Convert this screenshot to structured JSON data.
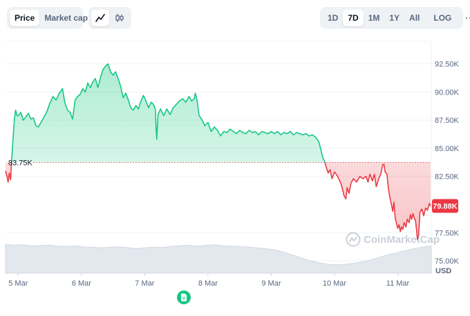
{
  "toolbar": {
    "metric_tabs": [
      "Price",
      "Market cap"
    ],
    "active_metric": "Price",
    "chart_type_icons": [
      "line-chart-icon",
      "candlestick-icon"
    ],
    "ranges": [
      "1D",
      "7D",
      "1M",
      "1Y",
      "All"
    ],
    "active_range": "7D",
    "log_label": "LOG",
    "more_label": "···"
  },
  "colors": {
    "up": "#16c784",
    "down": "#ea3943",
    "reference_line": "#ea3943",
    "current_badge": "#ea3943"
  },
  "watermark": "CoinMarketCap",
  "reference_label": "83.75K",
  "current_price_label": "79.88K",
  "y_axis_unit": "USD",
  "chart_data": {
    "type": "area",
    "series": [
      {
        "values": [
          [
            4.8,
            83.0
          ],
          [
            4.82,
            82.6
          ],
          [
            4.84,
            82.0
          ],
          [
            4.86,
            82.8
          ],
          [
            4.88,
            82.2
          ],
          [
            4.9,
            84.3
          ],
          [
            4.92,
            86.0
          ],
          [
            4.94,
            87.6
          ],
          [
            4.96,
            88.4
          ],
          [
            4.98,
            87.9
          ],
          [
            5.0,
            87.9
          ],
          [
            5.04,
            88.2
          ],
          [
            5.08,
            87.5
          ],
          [
            5.12,
            87.8
          ],
          [
            5.16,
            88.1
          ],
          [
            5.2,
            87.6
          ],
          [
            5.24,
            87.7
          ],
          [
            5.28,
            87.0
          ],
          [
            5.32,
            86.9
          ],
          [
            5.36,
            87.3
          ],
          [
            5.4,
            87.7
          ],
          [
            5.45,
            88.2
          ],
          [
            5.5,
            89.0
          ],
          [
            5.55,
            89.6
          ],
          [
            5.6,
            89.3
          ],
          [
            5.65,
            89.9
          ],
          [
            5.7,
            90.3
          ],
          [
            5.74,
            89.0
          ],
          [
            5.78,
            88.4
          ],
          [
            5.82,
            88.2
          ],
          [
            5.86,
            87.6
          ],
          [
            5.9,
            89.3
          ],
          [
            5.94,
            89.6
          ],
          [
            5.98,
            89.8
          ],
          [
            6.02,
            90.3
          ],
          [
            6.06,
            90.0
          ],
          [
            6.1,
            90.8
          ],
          [
            6.14,
            90.4
          ],
          [
            6.18,
            90.9
          ],
          [
            6.22,
            91.2
          ],
          [
            6.26,
            90.4
          ],
          [
            6.3,
            91.3
          ],
          [
            6.34,
            92.0
          ],
          [
            6.38,
            92.3
          ],
          [
            6.42,
            92.5
          ],
          [
            6.46,
            91.8
          ],
          [
            6.5,
            91.5
          ],
          [
            6.54,
            91.8
          ],
          [
            6.58,
            91.2
          ],
          [
            6.62,
            90.5
          ],
          [
            6.66,
            89.5
          ],
          [
            6.7,
            89.9
          ],
          [
            6.74,
            89.3
          ],
          [
            6.78,
            88.6
          ],
          [
            6.82,
            88.4
          ],
          [
            6.86,
            88.8
          ],
          [
            6.9,
            88.5
          ],
          [
            6.94,
            89.2
          ],
          [
            6.98,
            89.7
          ],
          [
            7.02,
            89.2
          ],
          [
            7.06,
            88.6
          ],
          [
            7.1,
            89.1
          ],
          [
            7.14,
            88.9
          ],
          [
            7.17,
            88.4
          ],
          [
            7.18,
            86.8
          ],
          [
            7.19,
            85.8
          ],
          [
            7.21,
            88.0
          ],
          [
            7.25,
            88.5
          ],
          [
            7.3,
            87.9
          ],
          [
            7.35,
            88.5
          ],
          [
            7.4,
            88.0
          ],
          [
            7.45,
            88.6
          ],
          [
            7.5,
            88.9
          ],
          [
            7.55,
            89.2
          ],
          [
            7.6,
            89.4
          ],
          [
            7.65,
            89.1
          ],
          [
            7.7,
            89.6
          ],
          [
            7.74,
            89.2
          ],
          [
            7.78,
            89.4
          ],
          [
            7.8,
            89.9
          ],
          [
            7.83,
            89.2
          ],
          [
            7.86,
            87.9
          ],
          [
            7.9,
            87.6
          ],
          [
            7.95,
            87.0
          ],
          [
            8.0,
            87.3
          ],
          [
            8.05,
            86.5
          ],
          [
            8.1,
            86.9
          ],
          [
            8.15,
            86.6
          ],
          [
            8.2,
            86.1
          ],
          [
            8.25,
            86.5
          ],
          [
            8.3,
            86.4
          ],
          [
            8.35,
            86.7
          ],
          [
            8.4,
            86.5
          ],
          [
            8.45,
            86.3
          ],
          [
            8.5,
            86.6
          ],
          [
            8.55,
            86.4
          ],
          [
            8.6,
            86.3
          ],
          [
            8.65,
            86.6
          ],
          [
            8.7,
            86.4
          ],
          [
            8.75,
            86.5
          ],
          [
            8.8,
            86.2
          ],
          [
            8.85,
            86.5
          ],
          [
            8.9,
            86.4
          ],
          [
            8.95,
            86.3
          ],
          [
            9.0,
            86.5
          ],
          [
            9.05,
            86.3
          ],
          [
            9.1,
            86.5
          ],
          [
            9.15,
            86.2
          ],
          [
            9.2,
            86.4
          ],
          [
            9.25,
            86.3
          ],
          [
            9.3,
            86.5
          ],
          [
            9.35,
            86.2
          ],
          [
            9.4,
            86.4
          ],
          [
            9.45,
            86.3
          ],
          [
            9.5,
            86.2
          ],
          [
            9.55,
            86.3
          ],
          [
            9.6,
            86.1
          ],
          [
            9.65,
            86.2
          ],
          [
            9.7,
            86.0
          ],
          [
            9.75,
            85.6
          ],
          [
            9.78,
            85.0
          ],
          [
            9.8,
            84.5
          ],
          [
            9.82,
            84.1
          ],
          [
            9.84,
            83.9
          ],
          [
            9.87,
            83.3
          ],
          [
            9.9,
            82.8
          ],
          [
            9.93,
            83.1
          ],
          [
            9.96,
            82.3
          ],
          [
            10.0,
            82.9
          ],
          [
            10.05,
            82.5
          ],
          [
            10.1,
            81.9
          ],
          [
            10.13,
            81.3
          ],
          [
            10.15,
            80.8
          ],
          [
            10.18,
            80.5
          ],
          [
            10.2,
            81.5
          ],
          [
            10.23,
            81.0
          ],
          [
            10.26,
            81.9
          ],
          [
            10.3,
            82.3
          ],
          [
            10.35,
            82.0
          ],
          [
            10.4,
            82.5
          ],
          [
            10.45,
            82.3
          ],
          [
            10.5,
            82.5
          ],
          [
            10.53,
            82.0
          ],
          [
            10.56,
            82.7
          ],
          [
            10.6,
            82.1
          ],
          [
            10.63,
            82.7
          ],
          [
            10.66,
            81.6
          ],
          [
            10.7,
            82.3
          ],
          [
            10.73,
            82.7
          ],
          [
            10.76,
            83.5
          ],
          [
            10.78,
            83.6
          ],
          [
            10.8,
            82.9
          ],
          [
            10.83,
            82.7
          ],
          [
            10.85,
            81.5
          ],
          [
            10.87,
            80.8
          ],
          [
            10.9,
            80.0
          ],
          [
            10.92,
            79.4
          ],
          [
            10.94,
            80.2
          ],
          [
            10.96,
            78.8
          ],
          [
            10.98,
            78.3
          ],
          [
            11.0,
            77.9
          ],
          [
            11.02,
            78.2
          ],
          [
            11.04,
            77.6
          ],
          [
            11.06,
            78.0
          ],
          [
            11.08,
            77.8
          ],
          [
            11.1,
            78.4
          ],
          [
            11.13,
            78.0
          ],
          [
            11.15,
            78.7
          ],
          [
            11.18,
            78.4
          ],
          [
            11.2,
            79.1
          ],
          [
            11.22,
            78.7
          ],
          [
            11.24,
            79.2
          ],
          [
            11.26,
            78.8
          ],
          [
            11.28,
            78.6
          ],
          [
            11.3,
            77.6
          ],
          [
            11.31,
            76.9
          ],
          [
            11.33,
            77.3
          ],
          [
            11.35,
            79.3
          ],
          [
            11.38,
            79.6
          ],
          [
            11.41,
            79.0
          ],
          [
            11.44,
            79.7
          ],
          [
            11.47,
            79.5
          ],
          [
            11.5,
            80.1
          ],
          [
            11.52,
            79.88
          ]
        ]
      }
    ],
    "reference_value": 83.75,
    "current_value": 79.88,
    "xlim": [
      4.8,
      11.53
    ],
    "ylim": [
      73.9,
      94.5
    ],
    "x_ticks": [
      {
        "x": 5,
        "label": "5 Mar"
      },
      {
        "x": 6,
        "label": "6 Mar"
      },
      {
        "x": 7,
        "label": "7 Mar"
      },
      {
        "x": 8,
        "label": "8 Mar"
      },
      {
        "x": 9,
        "label": "9 Mar"
      },
      {
        "x": 10,
        "label": "10 Mar"
      },
      {
        "x": 11,
        "label": "11 Mar"
      }
    ],
    "y_ticks": [
      {
        "y": 92.5,
        "label": "92.50K"
      },
      {
        "y": 90.0,
        "label": "90.00K"
      },
      {
        "y": 87.5,
        "label": "87.50K"
      },
      {
        "y": 85.0,
        "label": "85.00K"
      },
      {
        "y": 82.5,
        "label": "82.50K"
      },
      {
        "y": 77.5,
        "label": "77.50K"
      },
      {
        "y": 75.0,
        "label": "75.00K"
      }
    ],
    "volume_series": [
      0.82,
      0.8,
      0.81,
      0.78,
      0.79,
      0.8,
      0.77,
      0.76,
      0.78,
      0.75,
      0.74,
      0.72,
      0.74,
      0.75,
      0.73,
      0.7,
      0.72,
      0.74,
      0.73,
      0.76,
      0.78,
      0.8,
      0.77,
      0.79,
      0.81,
      0.78,
      0.77,
      0.76,
      0.74,
      0.72,
      0.7,
      0.66,
      0.6,
      0.52,
      0.44,
      0.36,
      0.3,
      0.26,
      0.24,
      0.25,
      0.28,
      0.32,
      0.38,
      0.45,
      0.52,
      0.58,
      0.64,
      0.7,
      0.74,
      0.78
    ],
    "grid": true,
    "legend": "none",
    "volume_label": ""
  }
}
